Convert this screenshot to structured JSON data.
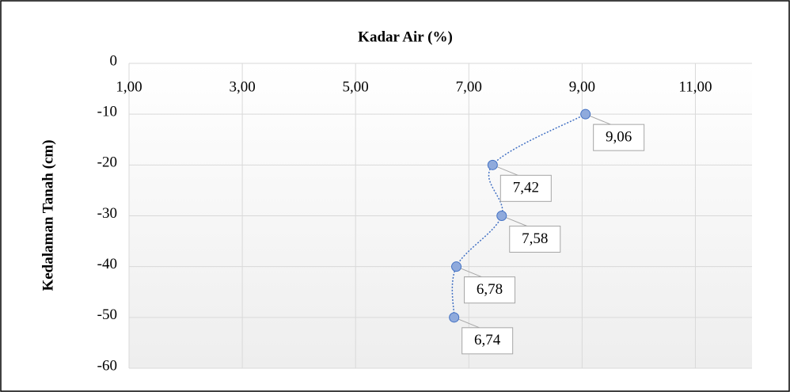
{
  "chart_data": {
    "type": "scatter",
    "title": "Kadar Air (%)",
    "y_label": "Kedalaman Tanah (cm)",
    "x": [
      9.06,
      7.42,
      7.58,
      6.78,
      6.74
    ],
    "values": [
      -10,
      -20,
      -30,
      -40,
      -50
    ],
    "value_labels": [
      "9,06",
      "7,42",
      "7,58",
      "6,78",
      "6,74"
    ],
    "color": "#8faadc",
    "line_color": "#4472c4",
    "xlim": [
      1,
      12
    ],
    "xticks": [
      {
        "value": 1,
        "label": "1,00"
      },
      {
        "value": 3,
        "label": "3,00"
      },
      {
        "value": 5,
        "label": "5,00"
      },
      {
        "value": 7,
        "label": "7,00"
      },
      {
        "value": 9,
        "label": "9,00"
      },
      {
        "value": 11,
        "label": "11,00"
      }
    ],
    "ylim": [
      -60,
      0
    ],
    "yticks": [
      0,
      -10,
      -20,
      -30,
      -40,
      -50,
      -60
    ],
    "grid": true
  }
}
